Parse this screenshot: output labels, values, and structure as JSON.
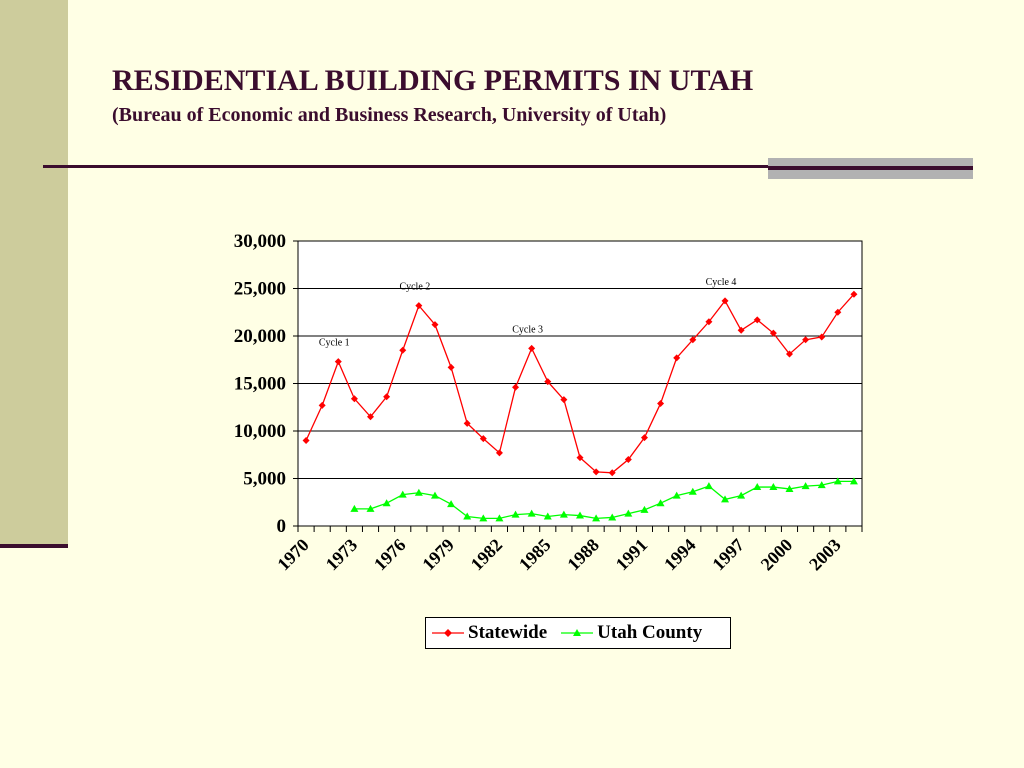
{
  "slide": {
    "title": "RESIDENTIAL BUILDING PERMITS IN UTAH",
    "subtitle": "(Bureau of Economic and Business Research, University of Utah)"
  },
  "colors": {
    "title": "#3B0D2E",
    "statewide": "#FF0000",
    "utah_county": "#00FF00"
  },
  "chart_data": {
    "type": "line",
    "x": [
      1970,
      1971,
      1972,
      1973,
      1974,
      1975,
      1976,
      1977,
      1978,
      1979,
      1980,
      1981,
      1982,
      1983,
      1984,
      1985,
      1986,
      1987,
      1988,
      1989,
      1990,
      1991,
      1992,
      1993,
      1994,
      1995,
      1996,
      1997,
      1998,
      1999,
      2000,
      2001,
      2002,
      2003,
      2004
    ],
    "xtick_labels": [
      "1970",
      "1973",
      "1976",
      "1979",
      "1982",
      "1985",
      "1988",
      "1991",
      "1994",
      "1997",
      "2000",
      "2003"
    ],
    "ylim": [
      0,
      30000
    ],
    "yticks": [
      0,
      5000,
      10000,
      15000,
      20000,
      25000,
      30000
    ],
    "ytick_labels": [
      "0",
      "5,000",
      "10,000",
      "15,000",
      "20,000",
      "25,000",
      "30,000"
    ],
    "grid": "horizontal",
    "legend_position": "bottom",
    "series": [
      {
        "name": "Statewide",
        "marker": "diamond",
        "color": "#FF0000",
        "values": [
          9000,
          12700,
          17300,
          13400,
          11500,
          13600,
          18500,
          23200,
          21200,
          16700,
          10800,
          9200,
          7700,
          14600,
          18700,
          15200,
          13300,
          7200,
          5700,
          5600,
          7000,
          9300,
          12900,
          17700,
          19600,
          21500,
          23700,
          20600,
          21700,
          20300,
          18100,
          19600,
          19900,
          22500,
          24400
        ]
      },
      {
        "name": "Utah County",
        "marker": "triangle",
        "color": "#00FF00",
        "values": [
          null,
          null,
          null,
          1800,
          1800,
          2400,
          3300,
          3500,
          3200,
          2300,
          1000,
          800,
          800,
          1200,
          1300,
          1000,
          1200,
          1100,
          800,
          900,
          1300,
          1700,
          2400,
          3200,
          3600,
          4200,
          2800,
          3200,
          4100,
          4100,
          3900,
          4200,
          4300,
          4700,
          4700
        ]
      }
    ],
    "annotations": [
      {
        "text": "Cycle 1",
        "x": 1972,
        "y": 17300
      },
      {
        "text": "Cycle 2",
        "x": 1977,
        "y": 23200
      },
      {
        "text": "Cycle 3",
        "x": 1984,
        "y": 18700
      },
      {
        "text": "Cycle 4",
        "x": 1996,
        "y": 23700
      }
    ]
  }
}
